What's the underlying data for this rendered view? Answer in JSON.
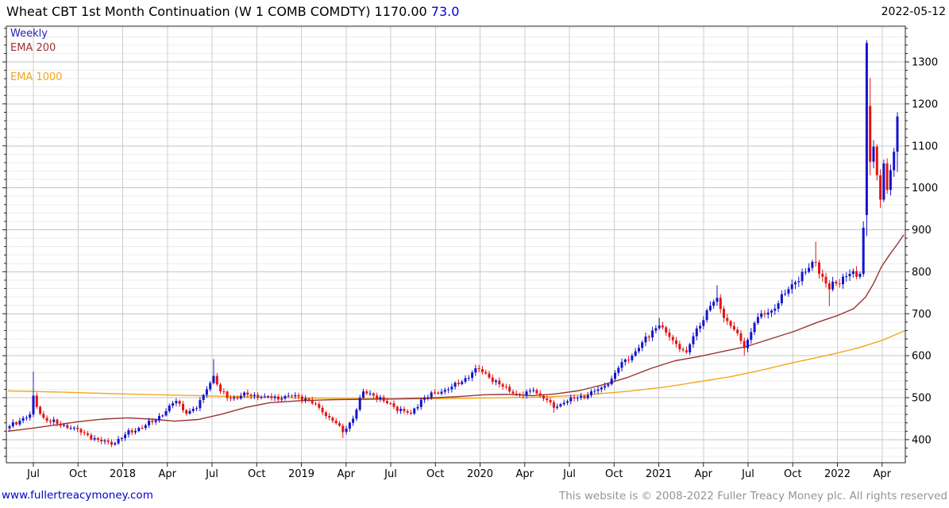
{
  "header": {
    "title": "Wheat CBT 1st Month Continuation (W 1 COMB COMDTY) 1170.00",
    "change": "73.0",
    "date": "2022-05-12"
  },
  "legend": {
    "weekly": "Weekly",
    "ema200": "EMA 200",
    "ema1000": "EMA 1000"
  },
  "footer": {
    "link": "www.fullertreacymoney.com",
    "copyright": "This website is © 2008-2022 Fuller Treacy Money plc. All rights reserved"
  },
  "colors": {
    "up_candle": "#1414cc",
    "down_candle": "#e41414",
    "ema200": "#9b3232",
    "ema1000": "#f2a71b",
    "weekly_label": "#2222bb",
    "title_change": "#0000dd",
    "link": "#0000cc"
  },
  "chart_data": {
    "type": "candlestick",
    "timeframe": "Weekly",
    "instrument": "Wheat CBT 1st Month Continuation",
    "symbol": "W 1 COMB COMDTY",
    "last_price": "1170.00",
    "change": "73.0",
    "date": "2022-05-12",
    "grid": "on",
    "ylim": [
      345,
      1385
    ],
    "y_major_ticks": [
      400,
      500,
      600,
      700,
      800,
      900,
      1000,
      1100,
      1200,
      1300
    ],
    "y_minor_step": 20,
    "x_tick_labels": [
      "Jul",
      "Oct",
      "2018",
      "Apr",
      "Jul",
      "Oct",
      "2019",
      "Apr",
      "Jul",
      "Oct",
      "2020",
      "Apr",
      "Jul",
      "Oct",
      "2021",
      "Apr",
      "Jul",
      "Oct",
      "2022",
      "Apr"
    ],
    "weeks": 262,
    "candle_keyframes": [
      [
        0,
        432
      ],
      [
        3,
        445
      ],
      [
        6,
        460
      ],
      [
        7,
        505,
        562,
        null
      ],
      [
        8,
        478
      ],
      [
        10,
        452
      ],
      [
        14,
        438
      ],
      [
        18,
        428
      ],
      [
        22,
        415
      ],
      [
        26,
        400
      ],
      [
        30,
        388,
        null,
        382
      ],
      [
        34,
        412
      ],
      [
        38,
        428
      ],
      [
        42,
        442
      ],
      [
        46,
        468
      ],
      [
        49,
        492
      ],
      [
        52,
        462
      ],
      [
        55,
        475
      ],
      [
        58,
        520
      ],
      [
        60,
        552,
        592,
        null
      ],
      [
        62,
        515
      ],
      [
        65,
        498
      ],
      [
        70,
        507
      ],
      [
        75,
        503
      ],
      [
        80,
        498
      ],
      [
        84,
        506
      ],
      [
        88,
        495
      ],
      [
        92,
        465
      ],
      [
        95,
        445
      ],
      [
        98,
        418,
        null,
        404
      ],
      [
        101,
        450
      ],
      [
        104,
        515
      ],
      [
        107,
        505
      ],
      [
        110,
        492
      ],
      [
        113,
        478
      ],
      [
        116,
        468
      ],
      [
        118,
        462
      ],
      [
        121,
        495
      ],
      [
        125,
        512
      ],
      [
        129,
        520
      ],
      [
        133,
        538
      ],
      [
        136,
        560
      ],
      [
        138,
        568,
        578,
        null
      ],
      [
        141,
        548
      ],
      [
        144,
        532
      ],
      [
        148,
        510
      ],
      [
        151,
        505
      ],
      [
        154,
        518
      ],
      [
        157,
        498
      ],
      [
        160,
        476,
        null,
        464
      ],
      [
        163,
        488
      ],
      [
        166,
        498
      ],
      [
        170,
        506
      ],
      [
        174,
        524
      ],
      [
        177,
        545
      ],
      [
        180,
        585
      ],
      [
        183,
        600
      ],
      [
        186,
        632
      ],
      [
        189,
        660
      ],
      [
        191,
        672,
        690,
        null
      ],
      [
        193,
        655
      ],
      [
        196,
        628
      ],
      [
        199,
        608
      ],
      [
        202,
        665
      ],
      [
        205,
        708
      ],
      [
        208,
        738,
        768,
        null
      ],
      [
        210,
        690
      ],
      [
        213,
        662
      ],
      [
        216,
        618,
        null,
        600
      ],
      [
        219,
        678
      ],
      [
        222,
        698
      ],
      [
        225,
        712
      ],
      [
        228,
        748
      ],
      [
        231,
        775
      ],
      [
        234,
        800
      ],
      [
        237,
        822,
        872,
        null
      ],
      [
        239,
        788
      ],
      [
        241,
        758,
        null,
        718
      ],
      [
        243,
        772
      ],
      [
        245,
        788
      ],
      [
        247,
        795
      ],
      [
        249,
        788
      ],
      [
        250,
        795
      ],
      [
        251,
        905,
        920,
        788
      ],
      [
        252,
        1345,
        1352,
        885,
        935
      ],
      [
        253,
        1062,
        1262,
        1030,
        1195
      ],
      [
        254,
        1098
      ],
      [
        255,
        1030
      ],
      [
        256,
        972,
        null,
        952
      ],
      [
        257,
        1058
      ],
      [
        258,
        995
      ],
      [
        259,
        1042
      ],
      [
        260,
        1086
      ],
      [
        261,
        1170,
        1180,
        1038
      ]
    ],
    "ema200_points": [
      [
        10,
        420
      ],
      [
        40,
        427
      ],
      [
        70,
        435
      ],
      [
        100,
        443
      ],
      [
        130,
        449
      ],
      [
        160,
        452
      ],
      [
        190,
        449
      ],
      [
        220,
        444
      ],
      [
        250,
        448
      ],
      [
        280,
        461
      ],
      [
        310,
        477
      ],
      [
        340,
        488
      ],
      [
        380,
        493
      ],
      [
        420,
        495
      ],
      [
        460,
        496
      ],
      [
        500,
        497
      ],
      [
        540,
        499
      ],
      [
        580,
        503
      ],
      [
        610,
        507
      ],
      [
        640,
        508
      ],
      [
        670,
        505
      ],
      [
        700,
        509
      ],
      [
        730,
        517
      ],
      [
        760,
        531
      ],
      [
        790,
        548
      ],
      [
        820,
        570
      ],
      [
        850,
        588
      ],
      [
        880,
        598
      ],
      [
        910,
        610
      ],
      [
        940,
        622
      ],
      [
        970,
        640
      ],
      [
        1000,
        658
      ],
      [
        1030,
        680
      ],
      [
        1055,
        696
      ],
      [
        1075,
        712
      ],
      [
        1090,
        740
      ],
      [
        1100,
        772
      ],
      [
        1110,
        812
      ],
      [
        1120,
        840
      ],
      [
        1130,
        866
      ],
      [
        1138,
        888
      ]
    ],
    "ema1000_points": [
      [
        10,
        516
      ],
      [
        80,
        513
      ],
      [
        150,
        509
      ],
      [
        220,
        506
      ],
      [
        290,
        503
      ],
      [
        360,
        500
      ],
      [
        430,
        498
      ],
      [
        500,
        497
      ],
      [
        570,
        498
      ],
      [
        640,
        500
      ],
      [
        690,
        502
      ],
      [
        740,
        507
      ],
      [
        790,
        515
      ],
      [
        840,
        526
      ],
      [
        880,
        538
      ],
      [
        920,
        550
      ],
      [
        960,
        566
      ],
      [
        1000,
        584
      ],
      [
        1040,
        600
      ],
      [
        1080,
        618
      ],
      [
        1110,
        636
      ],
      [
        1140,
        660
      ]
    ]
  }
}
